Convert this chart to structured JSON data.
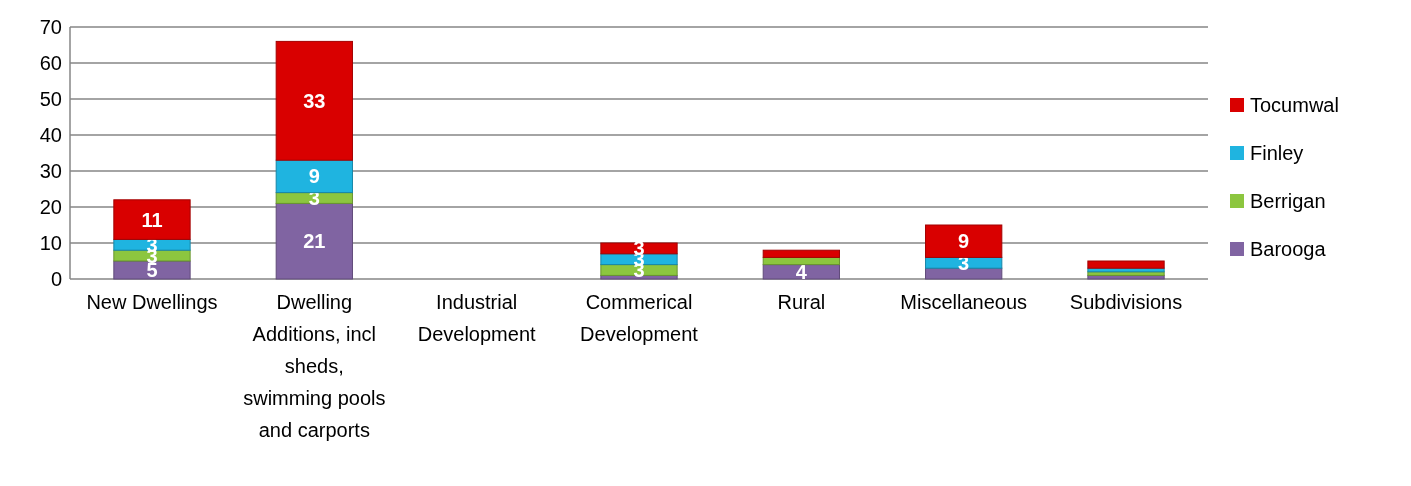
{
  "chart_data": {
    "type": "bar",
    "stacked": true,
    "categories": [
      "New Dwellings",
      "Dwelling Additions, incl sheds, swimming pools and carports",
      "Industrial Development",
      "Commerical Development",
      "Rural",
      "Miscellaneous",
      "Subdivisions"
    ],
    "series": [
      {
        "name": "Barooga",
        "color": "#8064a2",
        "values": [
          5,
          21,
          0,
          1,
          4,
          3,
          1
        ],
        "value_labels": [
          "5",
          "21",
          null,
          null,
          "4",
          null,
          null
        ]
      },
      {
        "name": "Berrigan",
        "color": "#8cc63f",
        "values": [
          3,
          3,
          0,
          3,
          2,
          0,
          1
        ],
        "value_labels": [
          "3",
          "3",
          null,
          "3",
          null,
          null,
          null
        ]
      },
      {
        "name": "Finley",
        "color": "#1fb4e0",
        "values": [
          3,
          9,
          0,
          3,
          0,
          3,
          1
        ],
        "value_labels": [
          "3",
          "9",
          null,
          "3",
          null,
          "3",
          null
        ]
      },
      {
        "name": "Tocumwal",
        "color": "#d90000",
        "values": [
          11,
          33,
          0,
          3,
          2,
          9,
          2
        ],
        "value_labels": [
          "11",
          "33",
          null,
          "3",
          null,
          "9",
          null
        ]
      }
    ],
    "ylim": [
      0,
      70
    ],
    "yticks": [
      0,
      10,
      20,
      30,
      40,
      50,
      60,
      70
    ],
    "grid": "y",
    "legend": "right"
  }
}
